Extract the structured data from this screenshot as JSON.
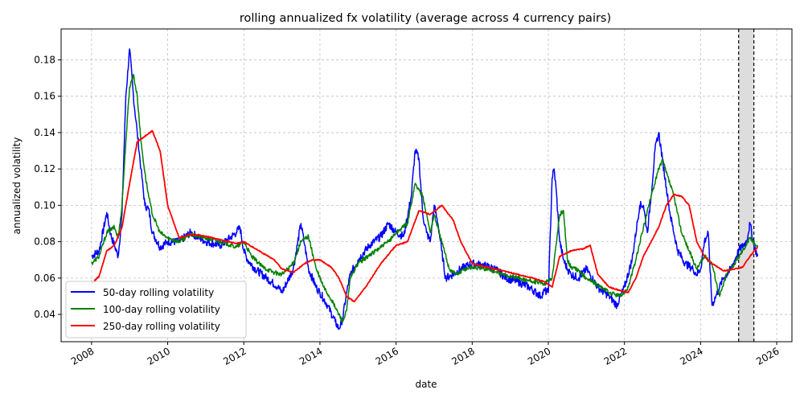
{
  "chart_data": {
    "type": "line",
    "title": "rolling annualized fx volatility (average across 4 currency pairs)",
    "xlabel": "date",
    "ylabel": "annualized volatility",
    "xlim": [
      2007.2,
      2026.4
    ],
    "ylim": [
      0.025,
      0.197
    ],
    "x_ticks": [
      2008,
      2010,
      2012,
      2014,
      2016,
      2018,
      2020,
      2022,
      2024,
      2026
    ],
    "x_tick_labels": [
      "2008",
      "2010",
      "2012",
      "2014",
      "2016",
      "2018",
      "2020",
      "2022",
      "2024",
      "2026"
    ],
    "y_ticks": [
      0.04,
      0.06,
      0.08,
      0.1,
      0.12,
      0.14,
      0.16,
      0.18
    ],
    "y_tick_labels": [
      "0.04",
      "0.06",
      "0.08",
      "0.10",
      "0.12",
      "0.14",
      "0.16",
      "0.18"
    ],
    "grid": true,
    "legend_position": "lower-left",
    "shaded_region": {
      "x_start": 2025.0,
      "x_end": 2025.4,
      "fill": "#dddddd",
      "border": "dashed"
    },
    "series": [
      {
        "name": "50-day rolling volatility",
        "color": "#0000ff",
        "x": [
          2008.0,
          2008.2,
          2008.4,
          2008.5,
          2008.6,
          2008.7,
          2008.8,
          2008.9,
          2009.0,
          2009.1,
          2009.2,
          2009.3,
          2009.4,
          2009.5,
          2009.6,
          2009.8,
          2010.0,
          2010.3,
          2010.6,
          2011.0,
          2011.4,
          2011.8,
          2011.9,
          2012.0,
          2012.1,
          2012.3,
          2012.6,
          2012.9,
          2013.0,
          2013.3,
          2013.5,
          2013.6,
          2013.7,
          2013.9,
          2014.0,
          2014.2,
          2014.4,
          2014.5,
          2014.6,
          2014.7,
          2014.8,
          2015.0,
          2015.3,
          2015.6,
          2015.8,
          2016.0,
          2016.2,
          2016.4,
          2016.5,
          2016.6,
          2016.7,
          2016.8,
          2016.9,
          2017.0,
          2017.1,
          2017.2,
          2017.3,
          2017.5,
          2017.7,
          2018.0,
          2018.3,
          2018.6,
          2018.9,
          2019.2,
          2019.5,
          2019.8,
          2019.9,
          2020.0,
          2020.1,
          2020.15,
          2020.2,
          2020.3,
          2020.4,
          2020.5,
          2020.6,
          2020.8,
          2021.0,
          2021.3,
          2021.6,
          2021.8,
          2022.0,
          2022.2,
          2022.4,
          2022.5,
          2022.6,
          2022.7,
          2022.8,
          2022.9,
          2023.0,
          2023.1,
          2023.2,
          2023.4,
          2023.6,
          2023.8,
          2023.9,
          2024.0,
          2024.1,
          2024.2,
          2024.3,
          2024.4,
          2024.5,
          2024.6,
          2024.8,
          2025.0,
          2025.2,
          2025.3,
          2025.4,
          2025.5
        ],
        "values": [
          0.072,
          0.075,
          0.096,
          0.084,
          0.078,
          0.072,
          0.095,
          0.16,
          0.186,
          0.16,
          0.14,
          0.12,
          0.1,
          0.098,
          0.085,
          0.077,
          0.08,
          0.08,
          0.085,
          0.08,
          0.078,
          0.085,
          0.088,
          0.075,
          0.07,
          0.065,
          0.06,
          0.055,
          0.052,
          0.065,
          0.09,
          0.078,
          0.065,
          0.055,
          0.052,
          0.045,
          0.036,
          0.032,
          0.038,
          0.052,
          0.062,
          0.07,
          0.078,
          0.083,
          0.09,
          0.085,
          0.083,
          0.105,
          0.13,
          0.126,
          0.095,
          0.085,
          0.08,
          0.1,
          0.09,
          0.075,
          0.06,
          0.062,
          0.065,
          0.068,
          0.067,
          0.065,
          0.06,
          0.058,
          0.055,
          0.05,
          0.053,
          0.052,
          0.115,
          0.12,
          0.11,
          0.08,
          0.07,
          0.065,
          0.062,
          0.06,
          0.065,
          0.055,
          0.05,
          0.045,
          0.055,
          0.07,
          0.1,
          0.1,
          0.085,
          0.105,
          0.13,
          0.14,
          0.125,
          0.11,
          0.095,
          0.075,
          0.068,
          0.065,
          0.062,
          0.065,
          0.08,
          0.085,
          0.045,
          0.05,
          0.055,
          0.06,
          0.065,
          0.075,
          0.08,
          0.09,
          0.078,
          0.072
        ]
      },
      {
        "name": "100-day rolling volatility",
        "color": "#008000",
        "x": [
          2008.0,
          2008.2,
          2008.4,
          2008.6,
          2008.7,
          2008.8,
          2008.9,
          2009.0,
          2009.1,
          2009.2,
          2009.3,
          2009.4,
          2009.5,
          2009.6,
          2009.8,
          2010.0,
          2010.3,
          2010.6,
          2011.0,
          2011.4,
          2011.8,
          2012.0,
          2012.2,
          2012.5,
          2012.8,
          2013.0,
          2013.3,
          2013.5,
          2013.7,
          2013.9,
          2014.1,
          2014.3,
          2014.5,
          2014.6,
          2014.7,
          2014.8,
          2015.0,
          2015.4,
          2015.8,
          2016.0,
          2016.3,
          2016.5,
          2016.7,
          2016.9,
          2017.0,
          2017.2,
          2017.4,
          2017.6,
          2017.8,
          2018.0,
          2018.4,
          2018.8,
          2019.2,
          2019.6,
          2019.9,
          2020.1,
          2020.3,
          2020.4,
          2020.5,
          2020.6,
          2020.8,
          2021.0,
          2021.3,
          2021.6,
          2021.9,
          2022.1,
          2022.3,
          2022.5,
          2022.7,
          2022.9,
          2023.0,
          2023.1,
          2023.3,
          2023.5,
          2023.7,
          2023.9,
          2024.1,
          2024.3,
          2024.5,
          2024.7,
          2024.9,
          2025.1,
          2025.3,
          2025.5
        ],
        "values": [
          0.068,
          0.072,
          0.085,
          0.088,
          0.082,
          0.1,
          0.135,
          0.165,
          0.172,
          0.16,
          0.135,
          0.118,
          0.105,
          0.095,
          0.085,
          0.082,
          0.08,
          0.084,
          0.082,
          0.08,
          0.077,
          0.08,
          0.072,
          0.066,
          0.063,
          0.062,
          0.068,
          0.08,
          0.083,
          0.065,
          0.055,
          0.048,
          0.04,
          0.036,
          0.042,
          0.06,
          0.068,
          0.074,
          0.08,
          0.085,
          0.09,
          0.112,
          0.105,
          0.085,
          0.095,
          0.08,
          0.065,
          0.062,
          0.065,
          0.066,
          0.065,
          0.062,
          0.06,
          0.058,
          0.057,
          0.06,
          0.095,
          0.097,
          0.07,
          0.066,
          0.064,
          0.06,
          0.056,
          0.052,
          0.05,
          0.055,
          0.07,
          0.088,
          0.105,
          0.12,
          0.125,
          0.118,
          0.105,
          0.085,
          0.075,
          0.065,
          0.072,
          0.068,
          0.05,
          0.063,
          0.068,
          0.075,
          0.082,
          0.077
        ]
      },
      {
        "name": "250-day rolling volatility",
        "color": "#ff0000",
        "x": [
          2008.0,
          2008.2,
          2008.4,
          2008.6,
          2008.8,
          2009.0,
          2009.2,
          2009.4,
          2009.6,
          2009.8,
          2010.0,
          2010.3,
          2010.6,
          2011.0,
          2011.4,
          2011.8,
          2012.0,
          2012.4,
          2012.8,
          2013.0,
          2013.3,
          2013.6,
          2013.8,
          2014.0,
          2014.3,
          2014.5,
          2014.7,
          2014.9,
          2015.2,
          2015.6,
          2016.0,
          2016.3,
          2016.6,
          2016.9,
          2017.2,
          2017.5,
          2017.7,
          2018.0,
          2018.4,
          2018.8,
          2019.2,
          2019.6,
          2019.9,
          2020.1,
          2020.3,
          2020.6,
          2020.9,
          2021.1,
          2021.3,
          2021.6,
          2021.9,
          2022.1,
          2022.3,
          2022.5,
          2022.7,
          2022.9,
          2023.1,
          2023.3,
          2023.5,
          2023.7,
          2023.9,
          2024.1,
          2024.3,
          2024.6,
          2024.9,
          2025.1,
          2025.3,
          2025.5
        ],
        "values": [
          0.057,
          0.061,
          0.075,
          0.078,
          0.088,
          0.112,
          0.135,
          0.138,
          0.141,
          0.13,
          0.1,
          0.082,
          0.084,
          0.083,
          0.081,
          0.079,
          0.08,
          0.075,
          0.07,
          0.065,
          0.063,
          0.068,
          0.07,
          0.07,
          0.066,
          0.06,
          0.05,
          0.047,
          0.055,
          0.068,
          0.078,
          0.08,
          0.097,
          0.095,
          0.1,
          0.092,
          0.08,
          0.068,
          0.066,
          0.064,
          0.062,
          0.06,
          0.058,
          0.055,
          0.072,
          0.075,
          0.076,
          0.078,
          0.062,
          0.055,
          0.053,
          0.052,
          0.06,
          0.072,
          0.08,
          0.088,
          0.1,
          0.106,
          0.105,
          0.1,
          0.08,
          0.072,
          0.068,
          0.064,
          0.065,
          0.066,
          0.072,
          0.077
        ]
      }
    ]
  }
}
